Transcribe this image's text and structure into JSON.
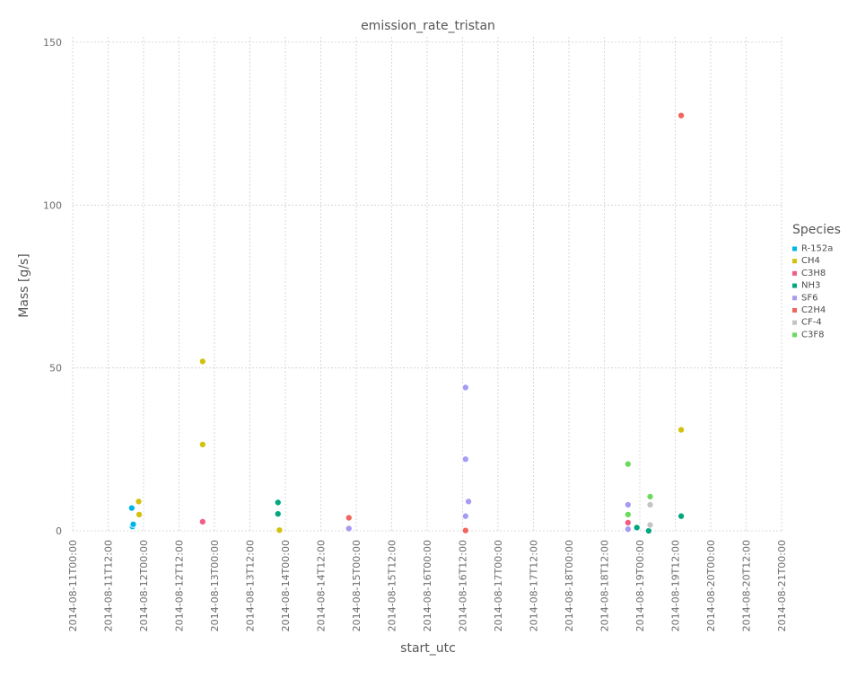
{
  "chart_data": {
    "type": "scatter",
    "title": "emission_rate_tristan",
    "xlabel": "start_utc",
    "ylabel": "Mass [g/s]",
    "xlim": [
      "2014-08-11T00:00",
      "2014-08-21T00:00"
    ],
    "ylim": [
      0,
      150
    ],
    "yticks": [
      0,
      50,
      100,
      150
    ],
    "xticks": [
      "2014-08-11T00:00",
      "2014-08-11T12:00",
      "2014-08-12T00:00",
      "2014-08-12T12:00",
      "2014-08-13T00:00",
      "2014-08-13T12:00",
      "2014-08-14T00:00",
      "2014-08-14T12:00",
      "2014-08-15T00:00",
      "2014-08-15T12:00",
      "2014-08-16T00:00",
      "2014-08-16T12:00",
      "2014-08-17T00:00",
      "2014-08-17T12:00",
      "2014-08-18T00:00",
      "2014-08-18T12:00",
      "2014-08-19T00:00",
      "2014-08-19T12:00",
      "2014-08-20T00:00",
      "2014-08-20T12:00",
      "2014-08-21T00:00"
    ],
    "grid": true,
    "legend": {
      "title": "Species",
      "placement": "right"
    },
    "series": [
      {
        "name": "R-152a",
        "color": "#00b5e5",
        "points": [
          [
            "2014-08-11T20:00",
            7.0
          ],
          [
            "2014-08-11T20:15",
            1.3
          ],
          [
            "2014-08-11T20:30",
            2.0
          ]
        ]
      },
      {
        "name": "CH4",
        "color": "#d4c10b",
        "points": [
          [
            "2014-08-11T22:20",
            9.0
          ],
          [
            "2014-08-11T22:30",
            5.0
          ],
          [
            "2014-08-12T20:00",
            52.0
          ],
          [
            "2014-08-12T20:00",
            26.5
          ],
          [
            "2014-08-13T22:00",
            0.2
          ],
          [
            "2014-08-19T14:00",
            31.0
          ]
        ]
      },
      {
        "name": "C3H8",
        "color": "#f25c85",
        "points": [
          [
            "2014-08-12T20:00",
            2.8
          ],
          [
            "2014-08-18T20:00",
            2.5
          ]
        ]
      },
      {
        "name": "NH3",
        "color": "#00a67e",
        "points": [
          [
            "2014-08-13T21:30",
            8.7
          ],
          [
            "2014-08-13T21:30",
            5.2
          ],
          [
            "2014-08-18T23:00",
            1.0
          ],
          [
            "2014-08-19T03:00",
            0.0
          ],
          [
            "2014-08-19T14:00",
            4.5
          ]
        ]
      },
      {
        "name": "SF6",
        "color": "#a49bf2",
        "points": [
          [
            "2014-08-14T21:30",
            0.7
          ],
          [
            "2014-08-16T13:00",
            44.0
          ],
          [
            "2014-08-16T13:00",
            22.0
          ],
          [
            "2014-08-16T14:00",
            9.0
          ],
          [
            "2014-08-16T13:00",
            4.5
          ],
          [
            "2014-08-18T20:00",
            8.0
          ],
          [
            "2014-08-18T20:00",
            0.5
          ]
        ]
      },
      {
        "name": "C2H4",
        "color": "#f2645e",
        "points": [
          [
            "2014-08-14T21:30",
            4.0
          ],
          [
            "2014-08-16T13:00",
            0.1
          ],
          [
            "2014-08-19T14:00",
            127.5
          ]
        ]
      },
      {
        "name": "CF-4",
        "color": "#c4c4c4",
        "points": [
          [
            "2014-08-19T03:30",
            8.0
          ],
          [
            "2014-08-19T03:30",
            1.8
          ]
        ]
      },
      {
        "name": "C3F8",
        "color": "#6adb5c",
        "points": [
          [
            "2014-08-18T20:00",
            20.5
          ],
          [
            "2014-08-18T20:00",
            5.0
          ],
          [
            "2014-08-19T03:30",
            10.5
          ]
        ]
      }
    ]
  }
}
